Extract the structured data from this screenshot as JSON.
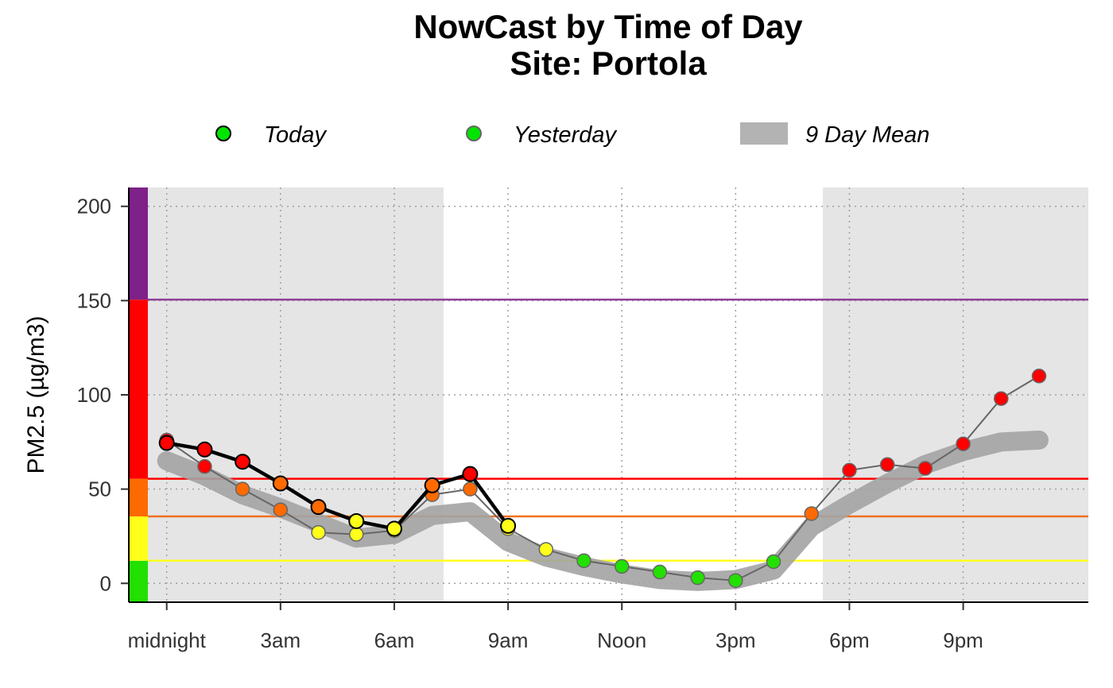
{
  "chart_data": {
    "type": "line",
    "title": "NowCast by Time of Day",
    "subtitle": "Site: Portola",
    "xlabel": "",
    "ylabel": "PM2.5 (µg/m3)",
    "xlim": [
      -1,
      24.3
    ],
    "ylim": [
      -10,
      210
    ],
    "yticks": [
      0,
      50,
      100,
      150,
      200
    ],
    "xticks": [
      0,
      3,
      6,
      9,
      12,
      15,
      18,
      21
    ],
    "xtick_labels": [
      "midnight",
      "3am",
      "6am",
      "9am",
      "Noon",
      "3pm",
      "6pm",
      "9pm"
    ],
    "night_shading": [
      [
        -0.6,
        7.3
      ],
      [
        17.3,
        24.3
      ]
    ],
    "aqi_thresholds": [
      {
        "value": 12,
        "color": "#ffff00"
      },
      {
        "value": 35.5,
        "color": "#ff7e00"
      },
      {
        "value": 55.5,
        "color": "#ff0000"
      },
      {
        "value": 150.5,
        "color": "#8f3f97"
      }
    ],
    "aqi_bands": [
      {
        "from": -10,
        "to": 12,
        "color": "#00e400"
      },
      {
        "from": 12,
        "to": 35.5,
        "color": "#ffff00"
      },
      {
        "from": 35.5,
        "to": 55.5,
        "color": "#ff7e00"
      },
      {
        "from": 55.5,
        "to": 150.5,
        "color": "#ff0000"
      },
      {
        "from": 150.5,
        "to": 210,
        "color": "#8f3f97"
      }
    ],
    "legend": {
      "today": "Today",
      "yesterday": "Yesterday",
      "mean": "9 Day Mean"
    },
    "series": [
      {
        "name": "9 Day Mean",
        "x": [
          0,
          1,
          2,
          3,
          4,
          5,
          6,
          7,
          8,
          9,
          10,
          11,
          12,
          13,
          14,
          15,
          16,
          17,
          18,
          19,
          20,
          21,
          22,
          23
        ],
        "values": [
          65,
          57,
          47,
          40,
          32,
          24,
          26,
          36,
          38,
          22,
          14,
          9,
          5,
          2,
          1,
          2,
          7,
          30,
          42,
          53,
          63,
          70,
          75,
          76
        ]
      },
      {
        "name": "Yesterday",
        "x": [
          0,
          1,
          2,
          3,
          4,
          5,
          6,
          7,
          8,
          9,
          10,
          11,
          12,
          13,
          14,
          15,
          16,
          17,
          18,
          19,
          20,
          21,
          22,
          23
        ],
        "values": [
          76,
          62,
          50,
          39,
          27,
          26,
          28,
          47,
          50,
          29,
          18,
          12,
          9,
          6,
          3,
          1.5,
          11.5,
          37,
          60,
          63,
          61,
          74,
          98,
          110
        ]
      },
      {
        "name": "Today",
        "x": [
          0,
          1,
          2,
          3,
          4,
          5,
          6,
          7,
          8,
          9
        ],
        "values": [
          74.5,
          71,
          64.5,
          53,
          40.5,
          33,
          29,
          52,
          58,
          30.5
        ]
      }
    ]
  }
}
